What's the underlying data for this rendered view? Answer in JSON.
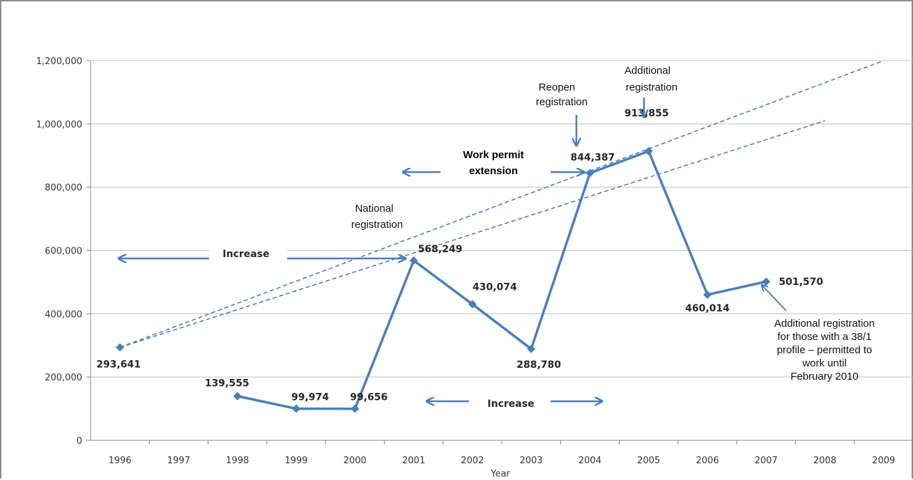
{
  "chart_data": {
    "type": "line",
    "title": "",
    "xlabel": "Year",
    "ylabel": "",
    "ylim": [
      0,
      1200000
    ],
    "yticks": [
      "0",
      "200,000",
      "400,000",
      "600,000",
      "800,000",
      "1,000,000",
      "1,200,000"
    ],
    "categories": [
      "1996",
      "1997",
      "1998",
      "1999",
      "2000",
      "2001",
      "2002",
      "2003",
      "2004",
      "2005",
      "2006",
      "2007",
      "2008",
      "2009"
    ],
    "grid": true,
    "series": [
      {
        "color": "#4a7ebb",
        "points": [
          {
            "x": "1996",
            "y": 293641,
            "label": "293,641"
          },
          {
            "x": "1998",
            "y": 139555,
            "label": "139,555"
          },
          {
            "x": "1999",
            "y": 99974,
            "label": "99,974"
          },
          {
            "x": "2000",
            "y": 99656,
            "label": "99,656"
          },
          {
            "x": "2001",
            "y": 568249,
            "label": "568,249"
          },
          {
            "x": "2002",
            "y": 430074,
            "label": "430,074"
          },
          {
            "x": "2003",
            "y": 288780,
            "label": "288,780"
          },
          {
            "x": "2004",
            "y": 844387,
            "label": "844,387"
          },
          {
            "x": "2005",
            "y": 913855,
            "label": "913,855"
          },
          {
            "x": "2006",
            "y": 460014,
            "label": "460,014"
          },
          {
            "x": "2007",
            "y": 501570,
            "label": "501,570"
          }
        ]
      }
    ],
    "trendlines": [
      {
        "style": "dashed",
        "from": {
          "x": "1996",
          "y": 293641
        },
        "to": {
          "x": "2009",
          "y": 1200000
        }
      },
      {
        "style": "dashed",
        "from": {
          "x": "1996",
          "y": 293641
        },
        "to": {
          "x": "2008",
          "y": 1010000
        }
      }
    ],
    "annotations": {
      "national_registration": [
        "National",
        "registration"
      ],
      "work_permit_extension": [
        "Work permit",
        "extension"
      ],
      "reopen_registration": [
        "Reopen",
        "registration"
      ],
      "additional_registration": [
        "Additional",
        "registration"
      ],
      "increase_left": "Increase",
      "increase_mid": "Increase",
      "additional_note": [
        "Additional registration",
        "for those with a 38/1",
        "profile – permitted to",
        "work until",
        "February 2010"
      ]
    },
    "colors": {
      "series": "#4a7ebb",
      "grid": "#bfbfbf",
      "axis": "#868686",
      "frame": "#8c8c8c"
    }
  }
}
